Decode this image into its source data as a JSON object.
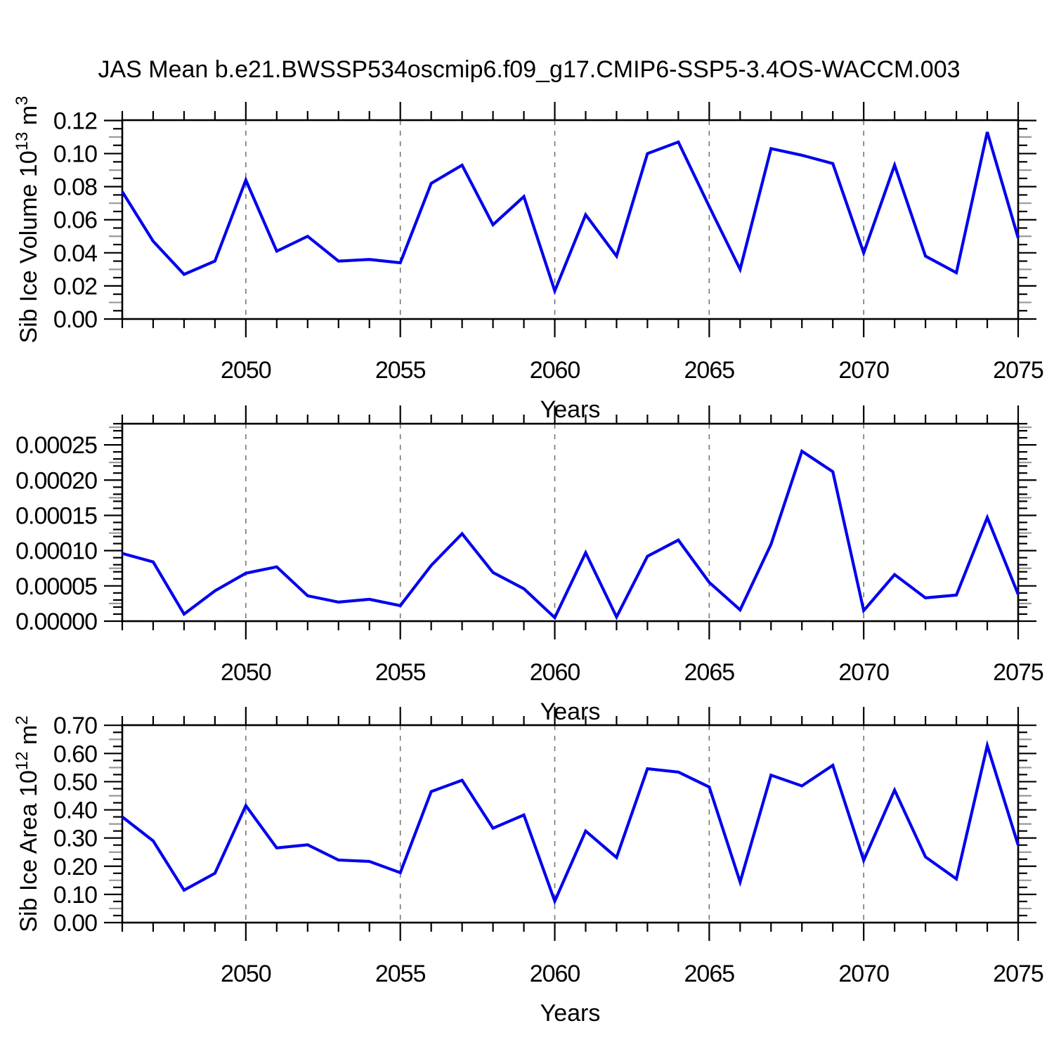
{
  "title": "JAS Mean b.e21.BWSSP534oscmip6.f09_g17.CMIP6-SSP5-3.4OS-WACCM.003",
  "line_color": "#0000ee",
  "grid_color": "#777777",
  "mid_tick_color": "#999999",
  "axis_color": "#000000",
  "chart_data": [
    {
      "type": "line",
      "panel": "sib-ice-volume",
      "ylabel_text": "Sib Ice Volume 10^13 m^3",
      "ylabel_segments": [
        {
          "t": "Sib Ice Volume 10"
        },
        {
          "t": "13",
          "sup": true
        },
        {
          "t": " m"
        },
        {
          "t": "3",
          "sup": true
        }
      ],
      "xlabel": "Years",
      "x": [
        2046,
        2047,
        2048,
        2049,
        2050,
        2051,
        2052,
        2053,
        2054,
        2055,
        2056,
        2057,
        2058,
        2059,
        2060,
        2061,
        2062,
        2063,
        2064,
        2065,
        2066,
        2067,
        2068,
        2069,
        2070,
        2071,
        2072,
        2073,
        2074,
        2075
      ],
      "values": [
        0.077,
        0.047,
        0.027,
        0.035,
        0.084,
        0.041,
        0.05,
        0.035,
        0.036,
        0.034,
        0.082,
        0.093,
        0.057,
        0.074,
        0.017,
        0.063,
        0.038,
        0.1,
        0.107,
        0.068,
        0.03,
        0.103,
        0.099,
        0.094,
        0.04,
        0.093,
        0.038,
        0.028,
        0.113,
        0.049
      ],
      "xlim": [
        2046,
        2075
      ],
      "ylim": [
        0,
        0.1202
      ],
      "y_major_ticks": {
        "values": [
          0,
          0.02,
          0.04,
          0.06,
          0.08,
          0.1,
          0.12
        ],
        "labels": [
          "0.00",
          "0.02",
          "0.04",
          "0.06",
          "0.08",
          "0.10",
          "0.12"
        ]
      },
      "y_minor_step": 0.005,
      "y_mid_step": 0.01,
      "x_major_ticks": {
        "values": [
          2050,
          2055,
          2060,
          2065,
          2070,
          2075
        ],
        "labels": [
          "2050",
          "2055",
          "2060",
          "2065",
          "2070",
          "2075"
        ]
      },
      "x_minor_step": 1,
      "x_gridlines": [
        2050,
        2055,
        2060,
        2065,
        2070
      ],
      "grid": "vertical-dashed",
      "legend": "none"
    },
    {
      "type": "line",
      "panel": "sib-ice-middle",
      "ylabel_text": "",
      "ylabel_segments": [],
      "xlabel": "Years",
      "x": [
        2046,
        2047,
        2048,
        2049,
        2050,
        2051,
        2052,
        2053,
        2054,
        2055,
        2056,
        2057,
        2058,
        2059,
        2060,
        2061,
        2062,
        2063,
        2064,
        2065,
        2066,
        2067,
        2068,
        2069,
        2070,
        2071,
        2072,
        2073,
        2074,
        2075
      ],
      "values": [
        9.6e-05,
        8.4e-05,
        1e-05,
        4.3e-05,
        6.8e-05,
        7.7e-05,
        3.6e-05,
        2.7e-05,
        3.1e-05,
        2.2e-05,
        7.9e-05,
        0.000124,
        6.9e-05,
        4.6e-05,
        5e-06,
        9.7e-05,
        6e-06,
        9.2e-05,
        0.000115,
        5.5e-05,
        1.6e-05,
        0.000109,
        0.000241,
        0.000212,
        1.5e-05,
        6.6e-05,
        3.3e-05,
        3.7e-05,
        0.000147,
        3.8e-05
      ],
      "xlim": [
        2046,
        2075
      ],
      "ylim": [
        0,
        0.00028
      ],
      "y_major_ticks": {
        "values": [
          0,
          5e-05,
          0.0001,
          0.00015,
          0.0002,
          0.00025
        ],
        "labels": [
          "0.00000",
          "0.00005",
          "0.00010",
          "0.00015",
          "0.00020",
          "0.00025"
        ]
      },
      "y_minor_step": 1e-05,
      "y_mid_step": 2.5e-05,
      "x_major_ticks": {
        "values": [
          2050,
          2055,
          2060,
          2065,
          2070,
          2075
        ],
        "labels": [
          "2050",
          "2055",
          "2060",
          "2065",
          "2070",
          "2075"
        ]
      },
      "x_minor_step": 1,
      "x_gridlines": [
        2050,
        2055,
        2060,
        2065,
        2070
      ],
      "grid": "vertical-dashed",
      "legend": "none"
    },
    {
      "type": "line",
      "panel": "sib-ice-area",
      "ylabel_text": "Sib Ice Area 10^12 m^2",
      "ylabel_segments": [
        {
          "t": "Sib Ice Area 10"
        },
        {
          "t": "12",
          "sup": true
        },
        {
          "t": " m"
        },
        {
          "t": "2",
          "sup": true
        }
      ],
      "xlabel": "Years",
      "x": [
        2046,
        2047,
        2048,
        2049,
        2050,
        2051,
        2052,
        2053,
        2054,
        2055,
        2056,
        2057,
        2058,
        2059,
        2060,
        2061,
        2062,
        2063,
        2064,
        2065,
        2066,
        2067,
        2068,
        2069,
        2070,
        2071,
        2072,
        2073,
        2074,
        2075
      ],
      "values": [
        0.375,
        0.29,
        0.115,
        0.175,
        0.415,
        0.265,
        0.276,
        0.222,
        0.217,
        0.177,
        0.465,
        0.505,
        0.335,
        0.382,
        0.076,
        0.325,
        0.231,
        0.546,
        0.534,
        0.481,
        0.144,
        0.523,
        0.485,
        0.558,
        0.221,
        0.47,
        0.233,
        0.155,
        0.628,
        0.275
      ],
      "xlim": [
        2046,
        2075
      ],
      "ylim": [
        0,
        0.7005
      ],
      "y_major_ticks": {
        "values": [
          0,
          0.1,
          0.2,
          0.3,
          0.4,
          0.5,
          0.6,
          0.7
        ],
        "labels": [
          "0.00",
          "0.10",
          "0.20",
          "0.30",
          "0.40",
          "0.50",
          "0.60",
          "0.70"
        ]
      },
      "y_minor_step": 0.025,
      "y_mid_step": 0.05,
      "x_major_ticks": {
        "values": [
          2050,
          2055,
          2060,
          2065,
          2070,
          2075
        ],
        "labels": [
          "2050",
          "2055",
          "2060",
          "2065",
          "2070",
          "2075"
        ]
      },
      "x_minor_step": 1,
      "x_gridlines": [
        2050,
        2055,
        2060,
        2065,
        2070
      ],
      "grid": "vertical-dashed",
      "legend": "none"
    }
  ]
}
